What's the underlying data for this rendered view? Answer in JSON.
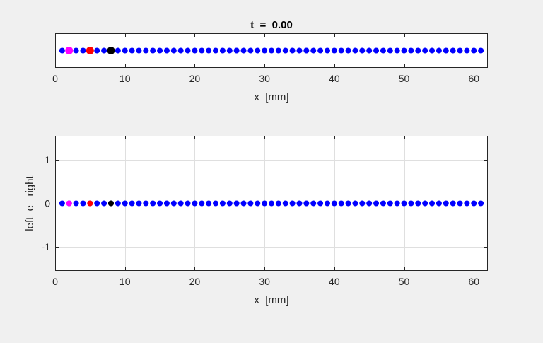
{
  "figure": {
    "background": "#f0f0f0",
    "axes_background": "#ffffff"
  },
  "chart_data": [
    {
      "type": "scatter",
      "title": "t  =  0.00",
      "xlabel": "x  [mm]",
      "ylabel": "",
      "xlim": [
        0,
        62
      ],
      "ylim": [
        -1,
        1
      ],
      "grid": false,
      "xticks": [
        0,
        10,
        20,
        30,
        40,
        50,
        60
      ],
      "xtick_labels": [
        "0",
        "10",
        "20",
        "30",
        "40",
        "50",
        "60"
      ],
      "yticks": [],
      "series": [
        {
          "name": "particles",
          "color": "#0000ff",
          "x_start": 1,
          "x_end": 61,
          "x_step": 1,
          "y": 0,
          "marker_size": "small"
        },
        {
          "name": "magenta marker",
          "color": "#ff00ff",
          "x": [
            2
          ],
          "y": [
            0
          ],
          "marker_size": "large"
        },
        {
          "name": "red marker",
          "color": "#ff0000",
          "x": [
            5
          ],
          "y": [
            0
          ],
          "marker_size": "large"
        },
        {
          "name": "black marker",
          "color": "#000000",
          "x": [
            8
          ],
          "y": [
            0
          ],
          "marker_size": "large"
        }
      ]
    },
    {
      "type": "scatter",
      "title": "",
      "xlabel": "x  [mm]",
      "ylabel": "left  e   right",
      "xlim": [
        0,
        62
      ],
      "ylim": [
        -1.55,
        1.55
      ],
      "grid": true,
      "xticks": [
        0,
        10,
        20,
        30,
        40,
        50,
        60
      ],
      "xtick_labels": [
        "0",
        "10",
        "20",
        "30",
        "40",
        "50",
        "60"
      ],
      "yticks": [
        -1,
        0,
        1
      ],
      "ytick_labels": [
        "-1",
        "0",
        "1"
      ],
      "series": [
        {
          "name": "particles",
          "color": "#0000ff",
          "x_start": 1,
          "x_end": 61,
          "x_step": 1,
          "y": 0,
          "marker_size": "small"
        },
        {
          "name": "magenta marker",
          "color": "#ff00ff",
          "x": [
            2
          ],
          "y": [
            0
          ],
          "marker_size": "small"
        },
        {
          "name": "red marker",
          "color": "#ff0000",
          "x": [
            5
          ],
          "y": [
            0
          ],
          "marker_size": "small"
        },
        {
          "name": "black marker",
          "color": "#000000",
          "x": [
            8
          ],
          "y": [
            0
          ],
          "marker_size": "small"
        }
      ]
    }
  ]
}
